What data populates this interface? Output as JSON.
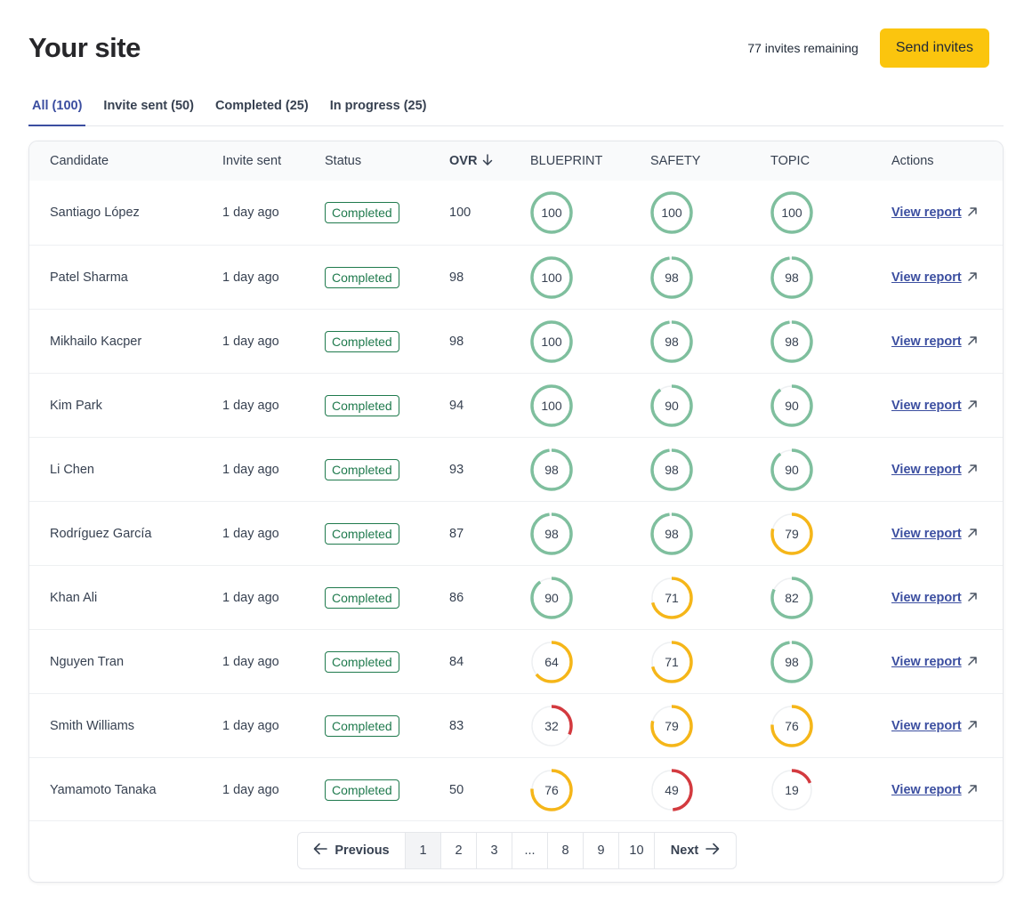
{
  "header": {
    "title": "Your site",
    "invites_remaining": "77 invites remaining",
    "send_label": "Send invites"
  },
  "tabs": [
    {
      "label": "All (100)",
      "active": true
    },
    {
      "label": "Invite sent (50)",
      "active": false
    },
    {
      "label": "Completed (25)",
      "active": false
    },
    {
      "label": "In progress (25)",
      "active": false
    }
  ],
  "table": {
    "columns": {
      "candidate": "Candidate",
      "invite_sent": "Invite sent",
      "status": "Status",
      "ovr": "OVR",
      "blueprint": "BLUEPRINT",
      "safety": "SAFETY",
      "topic": "TOPIC",
      "actions": "Actions"
    },
    "sort_icon": "arrow-down-icon",
    "rows": [
      {
        "name": "Santiago López",
        "invite": "1 day ago",
        "status": "Completed",
        "ovr": "100",
        "blueprint": 100,
        "safety": 100,
        "topic": 100,
        "action": "View report"
      },
      {
        "name": "Patel Sharma",
        "invite": "1 day ago",
        "status": "Completed",
        "ovr": "98",
        "blueprint": 100,
        "safety": 98,
        "topic": 98,
        "action": "View report"
      },
      {
        "name": "Mikhailo Kacper",
        "invite": "1 day ago",
        "status": "Completed",
        "ovr": "98",
        "blueprint": 100,
        "safety": 98,
        "topic": 98,
        "action": "View report"
      },
      {
        "name": "Kim Park",
        "invite": "1 day ago",
        "status": "Completed",
        "ovr": "94",
        "blueprint": 100,
        "safety": 90,
        "topic": 90,
        "action": "View report"
      },
      {
        "name": "Li Chen",
        "invite": "1 day ago",
        "status": "Completed",
        "ovr": "93",
        "blueprint": 98,
        "safety": 98,
        "topic": 90,
        "action": "View report"
      },
      {
        "name": "Rodríguez García",
        "invite": "1 day ago",
        "status": "Completed",
        "ovr": "87",
        "blueprint": 98,
        "safety": 98,
        "topic": 79,
        "action": "View report"
      },
      {
        "name": "Khan Ali",
        "invite": "1 day ago",
        "status": "Completed",
        "ovr": "86",
        "blueprint": 90,
        "safety": 71,
        "topic": 82,
        "action": "View report"
      },
      {
        "name": "Nguyen Tran",
        "invite": "1 day ago",
        "status": "Completed",
        "ovr": "84",
        "blueprint": 64,
        "safety": 71,
        "topic": 98,
        "action": "View report"
      },
      {
        "name": "Smith Williams",
        "invite": "1 day ago",
        "status": "Completed",
        "ovr": "83",
        "blueprint": 32,
        "safety": 79,
        "topic": 76,
        "action": "View report"
      },
      {
        "name": "Yamamoto Tanaka",
        "invite": "1 day ago",
        "status": "Completed",
        "ovr": "50",
        "blueprint": 76,
        "safety": 49,
        "topic": 19,
        "action": "View report"
      }
    ]
  },
  "pagination": {
    "prev_label": "Previous",
    "next_label": "Next",
    "pages": [
      "1",
      "2",
      "3",
      "...",
      "8",
      "9",
      "10"
    ],
    "current": "1"
  },
  "colors": {
    "accent": "#3b4ea0",
    "button": "#fbc50e",
    "score_high": "#7fbf9e",
    "score_mid": "#f5b619",
    "score_low": "#d33a3f",
    "ring_track": "#eef0f2",
    "status_badge": "#1f7a4d"
  }
}
